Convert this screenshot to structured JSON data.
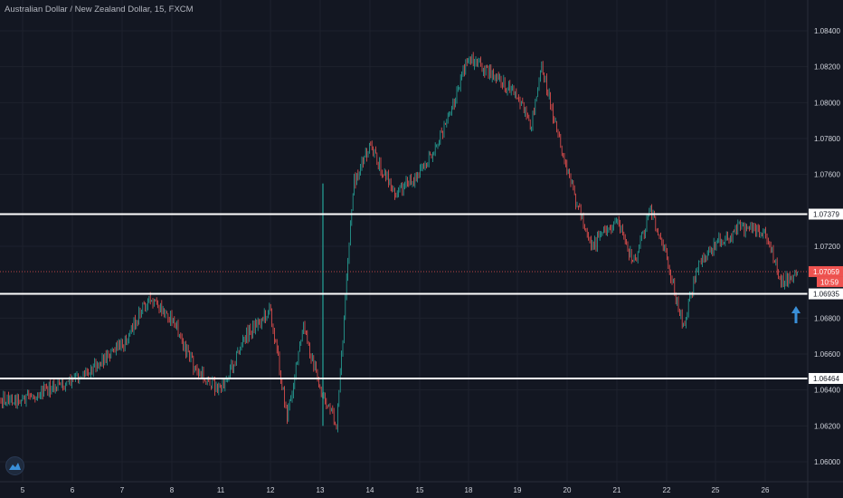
{
  "header": {
    "title": "Australian Dollar / New Zealand Dollar, 15, FXCM"
  },
  "colors": {
    "background": "#131722",
    "grid": "#1e222d",
    "up": "#26a69a",
    "down": "#ef5350",
    "level_line": "#ffffff",
    "price_line": "#ef5350",
    "arrow": "#3a8fd8",
    "axis_text": "#d1d4dc"
  },
  "icons": {
    "logo": "tradingview-logo-icon",
    "arrow": "arrow-up-icon"
  },
  "chart_data": {
    "type": "candlestick",
    "title": "Australian Dollar / New Zealand Dollar, 15, FXCM",
    "ylim": [
      1.0585,
      1.0855
    ],
    "y_ticks": [
      "1.06000",
      "1.06200",
      "1.06400",
      "1.06600",
      "1.06800",
      "1.07200",
      "1.07600",
      "1.07800",
      "1.08000",
      "1.08200",
      "1.08400"
    ],
    "x_ticks": [
      "5",
      "6",
      "7",
      "8",
      "11",
      "12",
      "13",
      "14",
      "15",
      "18",
      "19",
      "20",
      "21",
      "22",
      "25",
      "26"
    ],
    "grid": true,
    "horizontal_levels": [
      {
        "value": 1.07379,
        "label": "1.07379"
      },
      {
        "value": 1.06935,
        "label": "1.06935"
      },
      {
        "value": 1.06464,
        "label": "1.06464"
      }
    ],
    "current_price": {
      "value": 1.07059,
      "label": "1.07059",
      "countdown": "10:59"
    },
    "price_path": [
      {
        "x": "5",
        "y": 1.0635
      },
      {
        "x": "6",
        "y": 1.0645
      },
      {
        "x": "7",
        "y": 1.0665
      },
      {
        "x": "7",
        "y": 1.069
      },
      {
        "x": "8",
        "y": 1.068
      },
      {
        "x": "8",
        "y": 1.065
      },
      {
        "x": "11",
        "y": 1.064
      },
      {
        "x": "11",
        "y": 1.067
      },
      {
        "x": "12",
        "y": 1.0685
      },
      {
        "x": "12",
        "y": 1.0625
      },
      {
        "x": "12",
        "y": 1.0675
      },
      {
        "x": "13",
        "y": 1.064
      },
      {
        "x": "13",
        "y": 1.062
      },
      {
        "x": "13",
        "y": 1.0755
      },
      {
        "x": "14",
        "y": 1.0775
      },
      {
        "x": "14",
        "y": 1.075
      },
      {
        "x": "15",
        "y": 1.076
      },
      {
        "x": "15",
        "y": 1.0785
      },
      {
        "x": "18",
        "y": 1.0825
      },
      {
        "x": "18",
        "y": 1.0815
      },
      {
        "x": "19",
        "y": 1.0805
      },
      {
        "x": "19",
        "y": 1.0785
      },
      {
        "x": "19",
        "y": 1.082
      },
      {
        "x": "19",
        "y": 1.079
      },
      {
        "x": "20",
        "y": 1.076
      },
      {
        "x": "20",
        "y": 1.072
      },
      {
        "x": "21",
        "y": 1.0735
      },
      {
        "x": "21",
        "y": 1.071
      },
      {
        "x": "21",
        "y": 1.074
      },
      {
        "x": "22",
        "y": 1.0715
      },
      {
        "x": "22",
        "y": 1.0675
      },
      {
        "x": "22",
        "y": 1.071
      },
      {
        "x": "25",
        "y": 1.0722
      },
      {
        "x": "25",
        "y": 1.073
      },
      {
        "x": "26",
        "y": 1.0728
      },
      {
        "x": "26",
        "y": 1.07
      }
    ]
  }
}
